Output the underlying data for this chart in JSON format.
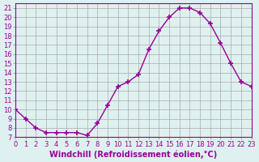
{
  "x": [
    0,
    1,
    2,
    3,
    4,
    5,
    6,
    7,
    8,
    9,
    10,
    11,
    12,
    13,
    14,
    15,
    16,
    17,
    18,
    19,
    20,
    21,
    22,
    23
  ],
  "y": [
    10,
    9,
    8,
    7.5,
    7.5,
    7.5,
    7.5,
    7.2,
    8.5,
    10.5,
    12.5,
    13,
    13.8,
    16.5,
    18.5,
    20,
    21,
    21,
    20.5,
    19.3,
    17.2,
    15,
    13,
    12.5
  ],
  "line_color": "#990099",
  "marker": "+",
  "marker_size": 4,
  "bg_color": "#dff0f0",
  "grid_color": "#aaaaaa",
  "xlabel": "Windchill (Refroidissement éolien,°C)",
  "xlim": [
    0,
    23
  ],
  "ylim": [
    7,
    21.5
  ],
  "yticks": [
    7,
    8,
    9,
    10,
    11,
    12,
    13,
    14,
    15,
    16,
    17,
    18,
    19,
    20,
    21
  ],
  "xticks": [
    0,
    1,
    2,
    3,
    4,
    5,
    6,
    7,
    8,
    9,
    10,
    11,
    12,
    13,
    14,
    15,
    16,
    17,
    18,
    19,
    20,
    21,
    22,
    23
  ],
  "tick_label_fontsize": 6,
  "axis_label_fontsize": 7,
  "line_width": 1.0
}
